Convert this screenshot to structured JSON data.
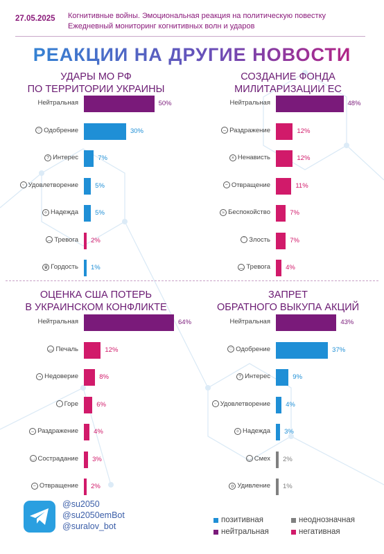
{
  "header": {
    "date": "27.05.2025",
    "line1": "Когнитивные войны. Эмоциональная реакция на политическую повестку",
    "line2": "Ежедневный мониторинг когнитивных волн и ударов"
  },
  "main_title": "РЕАКЦИИ НА ДРУГИЕ НОВОСТИ",
  "colors": {
    "positive": "#1f8fd6",
    "neutral": "#7a1a7a",
    "ambiguous": "#808080",
    "negative": "#d11a6a"
  },
  "chart_data": [
    {
      "type": "bar",
      "title_lines": [
        "УДАРЫ МО РФ",
        "ПО ТЕРРИТОРИИ УКРАИНЫ"
      ],
      "categories": [
        "Нейтральная",
        "Одобрение",
        "Интерес",
        "Удовлетворение",
        "Надежда",
        "Тревога",
        "Гордость"
      ],
      "values": [
        50,
        30,
        7,
        5,
        5,
        2,
        1
      ],
      "labels": [
        "50%",
        "30%",
        "7%",
        "5%",
        "5%",
        "2%",
        "1%"
      ],
      "kinds": [
        "neutral",
        "positive",
        "positive",
        "positive",
        "positive",
        "negative",
        "positive"
      ],
      "icons": [
        "",
        "heart-face-icon",
        "thinking-face-icon",
        "satisfied-face-icon",
        "hope-hands-icon",
        "worried-face-icon",
        "trophy-icon"
      ],
      "xlim": [
        0,
        64
      ]
    },
    {
      "type": "bar",
      "title_lines": [
        "СОЗДАНИЕ ФОНДА",
        "МИЛИТАРИЗАЦИИ ЕС"
      ],
      "categories": [
        "Нейтральная",
        "Раздражение",
        "Ненависть",
        "Отвращение",
        "Беспокойство",
        "Злость",
        "Тревога"
      ],
      "values": [
        48,
        12,
        12,
        11,
        7,
        7,
        4
      ],
      "labels": [
        "48%",
        "12%",
        "12%",
        "11%",
        "7%",
        "7%",
        "4%"
      ],
      "kinds": [
        "neutral",
        "negative",
        "negative",
        "negative",
        "negative",
        "negative",
        "negative"
      ],
      "icons": [
        "",
        "annoyed-face-icon",
        "hate-face-icon",
        "disgust-face-icon",
        "anxious-face-icon",
        "angry-face-icon",
        "worried-face-icon"
      ],
      "xlim": [
        0,
        64
      ]
    },
    {
      "type": "bar",
      "title_lines": [
        "ОЦЕНКА США ПОТЕРЬ",
        "В УКРАИНСКОМ КОНФЛИКТЕ"
      ],
      "categories": [
        "Нейтральная",
        "Печаль",
        "Недоверие",
        "Горе",
        "Раздражение",
        "Сострадание",
        "Отвращение"
      ],
      "values": [
        64,
        12,
        8,
        6,
        4,
        3,
        2
      ],
      "labels": [
        "64%",
        "12%",
        "8%",
        "6%",
        "4%",
        "3%",
        "2%"
      ],
      "kinds": [
        "neutral",
        "negative",
        "negative",
        "negative",
        "negative",
        "negative",
        "negative"
      ],
      "icons": [
        "",
        "sad-face-icon",
        "distrust-face-icon",
        "grief-face-icon",
        "annoyed-face-icon",
        "compassion-face-icon",
        "disgust-face-icon"
      ],
      "xlim": [
        0,
        64
      ]
    },
    {
      "type": "bar",
      "title_lines": [
        "ЗАПРЕТ",
        "ОБРАТНОГО ВЫКУПА АКЦИЙ"
      ],
      "categories": [
        "Нейтральная",
        "Одобрение",
        "Интерес",
        "Удовлетворение",
        "Надежда",
        "Смех",
        "Удивление"
      ],
      "values": [
        43,
        37,
        9,
        4,
        3,
        2,
        1
      ],
      "labels": [
        "43%",
        "37%",
        "9%",
        "4%",
        "3%",
        "2%",
        "1%"
      ],
      "kinds": [
        "neutral",
        "positive",
        "positive",
        "positive",
        "positive",
        "ambiguous",
        "ambiguous"
      ],
      "icons": [
        "",
        "heart-face-icon",
        "thinking-face-icon",
        "satisfied-face-icon",
        "hope-hands-icon",
        "laugh-face-icon",
        "surprised-face-icon"
      ],
      "xlim": [
        0,
        64
      ]
    }
  ],
  "footer": {
    "handles": [
      "@su2050",
      "@su2050emBot",
      "@suralov_bot"
    ],
    "legend": {
      "positive": "позитивная",
      "ambiguous": "неоднозначная",
      "neutral": "нейтральная",
      "negative": "негативная"
    }
  }
}
